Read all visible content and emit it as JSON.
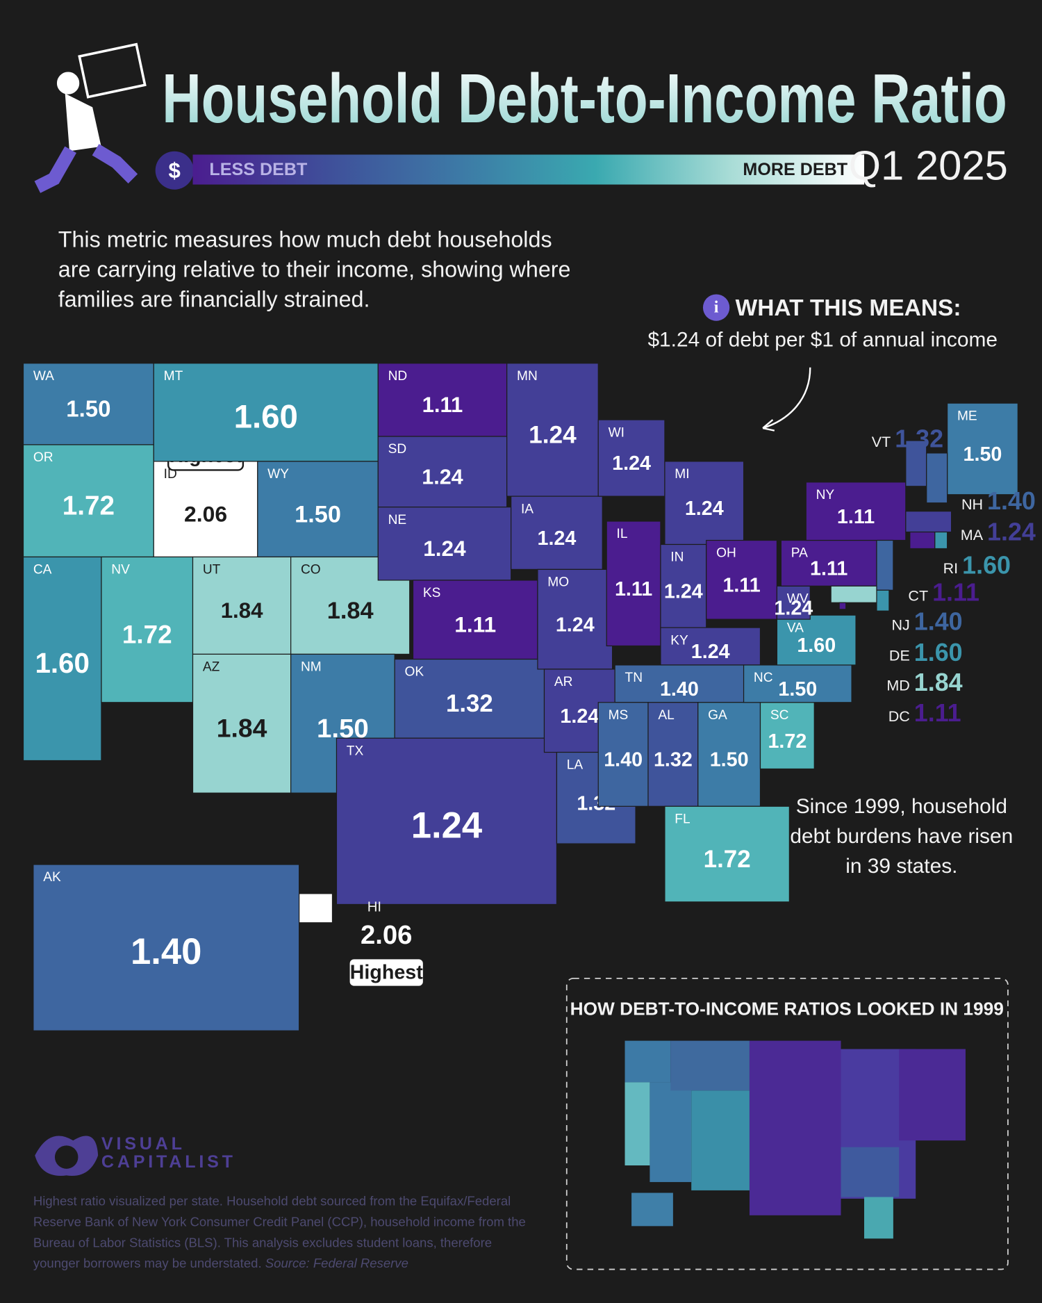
{
  "header": {
    "title": "Household Debt-to-Income Ratio",
    "period": "Q1 2025",
    "legend": {
      "low": "LESS DEBT",
      "high": "MORE DEBT",
      "colors": [
        "#4b1d8f",
        "#3f4f9a",
        "#3d7aa6",
        "#3aa9b0",
        "#a8dcd6",
        "#ffffff"
      ]
    }
  },
  "intro": "This metric measures how much debt households are carrying relative to their income, showing where families are financially strained.",
  "callout": {
    "heading": "WHAT THIS MEANS:",
    "text": "$1.24 of debt per $1 of annual income"
  },
  "chart_data": {
    "type": "map",
    "categories": [
      "WA",
      "OR",
      "ID",
      "MT",
      "WY",
      "CA",
      "NV",
      "UT",
      "CO",
      "AZ",
      "NM",
      "ND",
      "SD",
      "NE",
      "KS",
      "OK",
      "TX",
      "MN",
      "IA",
      "MO",
      "AR",
      "LA",
      "WI",
      "IL",
      "MI",
      "IN",
      "OH",
      "KY",
      "TN",
      "MS",
      "AL",
      "GA",
      "FL",
      "SC",
      "NC",
      "VA",
      "WV",
      "PA",
      "NY",
      "ME",
      "VT",
      "NH",
      "MA",
      "RI",
      "CT",
      "NJ",
      "DE",
      "MD",
      "DC",
      "AK",
      "HI"
    ],
    "values": [
      1.5,
      1.72,
      2.06,
      1.6,
      1.5,
      1.6,
      1.72,
      1.84,
      1.84,
      1.84,
      1.5,
      1.11,
      1.24,
      1.24,
      1.11,
      1.32,
      1.24,
      1.24,
      1.24,
      1.24,
      1.24,
      1.32,
      1.24,
      1.11,
      1.24,
      1.24,
      1.11,
      1.24,
      1.4,
      1.4,
      1.32,
      1.5,
      1.72,
      1.72,
      1.5,
      1.6,
      1.24,
      1.11,
      1.11,
      1.5,
      1.32,
      1.4,
      1.24,
      1.6,
      1.11,
      1.4,
      1.6,
      1.84,
      1.11,
      1.4,
      2.06
    ],
    "value_labels": [
      "1.50",
      "1.72",
      "2.06",
      "1.60",
      "1.50",
      "1.60",
      "1.72",
      "1.84",
      "1.84",
      "1.84",
      "1.50",
      "1.11",
      "1.24",
      "1.24",
      "1.11",
      "1.32",
      "1.24",
      "1.24",
      "1.24",
      "1.24",
      "1.24",
      "1.32",
      "1.24",
      "1.11",
      "1.24",
      "1.24",
      "1.11",
      "1.24",
      "1.40",
      "1.40",
      "1.32",
      "1.50",
      "1.72",
      "1.72",
      "1.50",
      "1.60",
      "1.24",
      "1.11",
      "1.11",
      "1.50",
      "1.32",
      "1.40",
      "1.24",
      "1.60",
      "1.11",
      "1.40",
      "1.60",
      "1.84",
      "1.11",
      "1.40",
      "2.06"
    ],
    "highlight_label": "Highest"
  },
  "note": "Since 1999, household debt burdens have risen in 39 states.",
  "inset": {
    "title": "HOW DEBT-TO-INCOME RATIOS LOOKED IN 1999"
  },
  "brand": {
    "line1": "VISUAL",
    "line2": "CAPITALIST"
  },
  "footer": {
    "text": "Highest ratio visualized per state. Household debt sourced from the Equifax/Federal Reserve Bank of New York Consumer Credit Panel (CCP), household income from the Bureau of Labor Statistics (BLS).  This analysis excludes student loans, therefore younger borrowers may be understated.",
    "source": "Source: Federal Reserve"
  }
}
